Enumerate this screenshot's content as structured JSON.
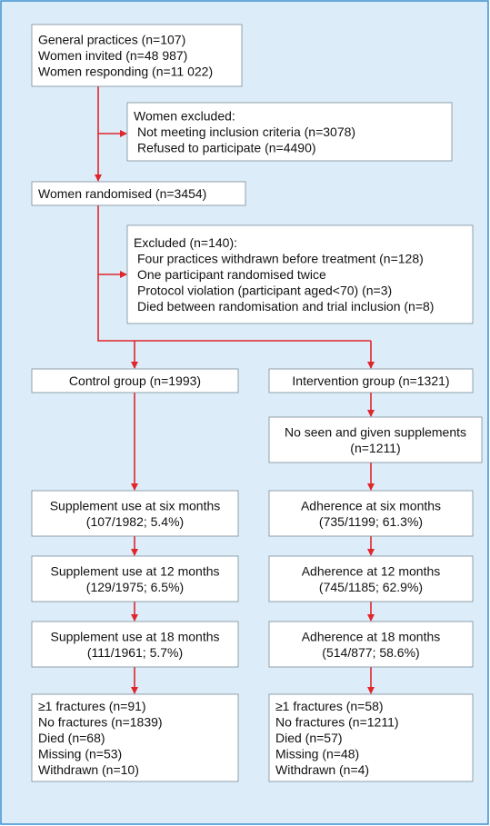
{
  "nodes": [
    {
      "lines": [
        "General practices (n=107)",
        "Women invited (n=48 987)",
        "Women responding (n=11 022)"
      ]
    },
    {
      "lines": [
        "Women excluded:",
        "Not meeting inclusion criteria (n=3078)",
        "Refused to participate (n=4490)"
      ]
    },
    {
      "lines": [
        "Women randomised (n=3454)"
      ]
    },
    {
      "lines": [
        "Excluded (n=140):",
        "Four practices withdrawn before treatment (n=128)",
        "One participant randomised twice",
        "Protocol violation (participant aged<70) (n=3)",
        "Died between randomisation and trial inclusion (n=8)"
      ]
    },
    {
      "lines": [
        "Control group (n=1993)"
      ]
    },
    {
      "lines": [
        "Intervention group (n=1321)"
      ]
    },
    {
      "lines": [
        "No seen and given supplements",
        "(n=1211)"
      ]
    },
    {
      "lines": [
        "Supplement use at six months",
        "(107/1982; 5.4%)"
      ]
    },
    {
      "lines": [
        "Adherence at six months",
        "(735/1199; 61.3%)"
      ]
    },
    {
      "lines": [
        "Supplement use at 12 months",
        "(129/1975; 6.5%)"
      ]
    },
    {
      "lines": [
        "Adherence at 12 months",
        "(745/1185; 62.9%)"
      ]
    },
    {
      "lines": [
        "Supplement use at 18 months",
        "(111/1961; 5.7%)"
      ]
    },
    {
      "lines": [
        "Adherence at 18 months",
        "(514/877; 58.6%)"
      ]
    },
    {
      "lines": [
        "≥1 fractures (n=91)",
        "No fractures (n=1839)",
        "Died (n=68)",
        "Missing (n=53)",
        "Withdrawn (n=10)"
      ]
    },
    {
      "lines": [
        "≥1 fractures (n=58)",
        "No fractures (n=1211)",
        "Died (n=57)",
        "Missing (n=48)",
        "Withdrawn (n=4)"
      ]
    }
  ]
}
